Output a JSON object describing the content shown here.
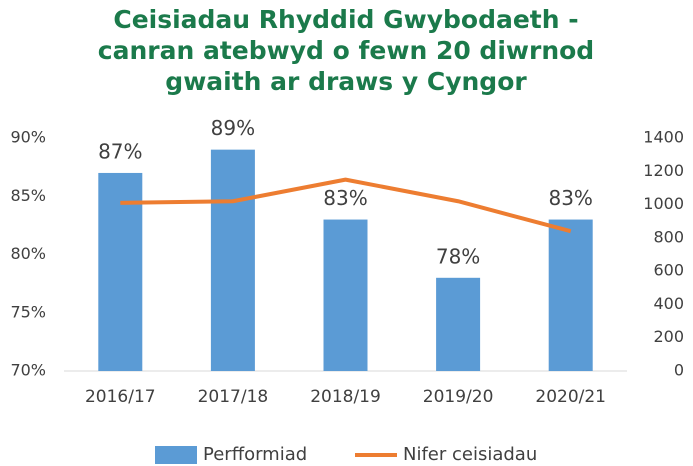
{
  "chart_data": {
    "type": "combo",
    "title": "Ceisiadau Rhyddid Gwybodaeth - canran atebwyd o fewn 20 diwrnod gwaith ar draws y Cyngor",
    "categories": [
      "2016/17",
      "2017/18",
      "2018/19",
      "2019/20",
      "2020/21"
    ],
    "series": [
      {
        "name": "Perfformiad",
        "type": "bar",
        "color": "#5b9bd5",
        "values": [
          87,
          89,
          83,
          78,
          83
        ],
        "value_labels": [
          "87%",
          "89%",
          "83%",
          "78%",
          "83%"
        ]
      },
      {
        "name": "Nifer ceisiadau",
        "type": "line",
        "axis": "y2",
        "color": "#ed7d31",
        "values": [
          1010,
          1020,
          1150,
          1020,
          840
        ]
      }
    ],
    "ylim": [
      70,
      90
    ],
    "yticks": [
      {
        "value": 70,
        "label": "70%"
      },
      {
        "value": 75,
        "label": "75%"
      },
      {
        "value": 80,
        "label": "80%"
      },
      {
        "value": 85,
        "label": "85%"
      },
      {
        "value": 90,
        "label": "90%"
      }
    ],
    "y2lim": [
      0,
      1400
    ],
    "y2ticks": [
      0,
      200,
      400,
      600,
      800,
      1000,
      1200,
      1400
    ],
    "grid": false,
    "legend": "bottom"
  }
}
